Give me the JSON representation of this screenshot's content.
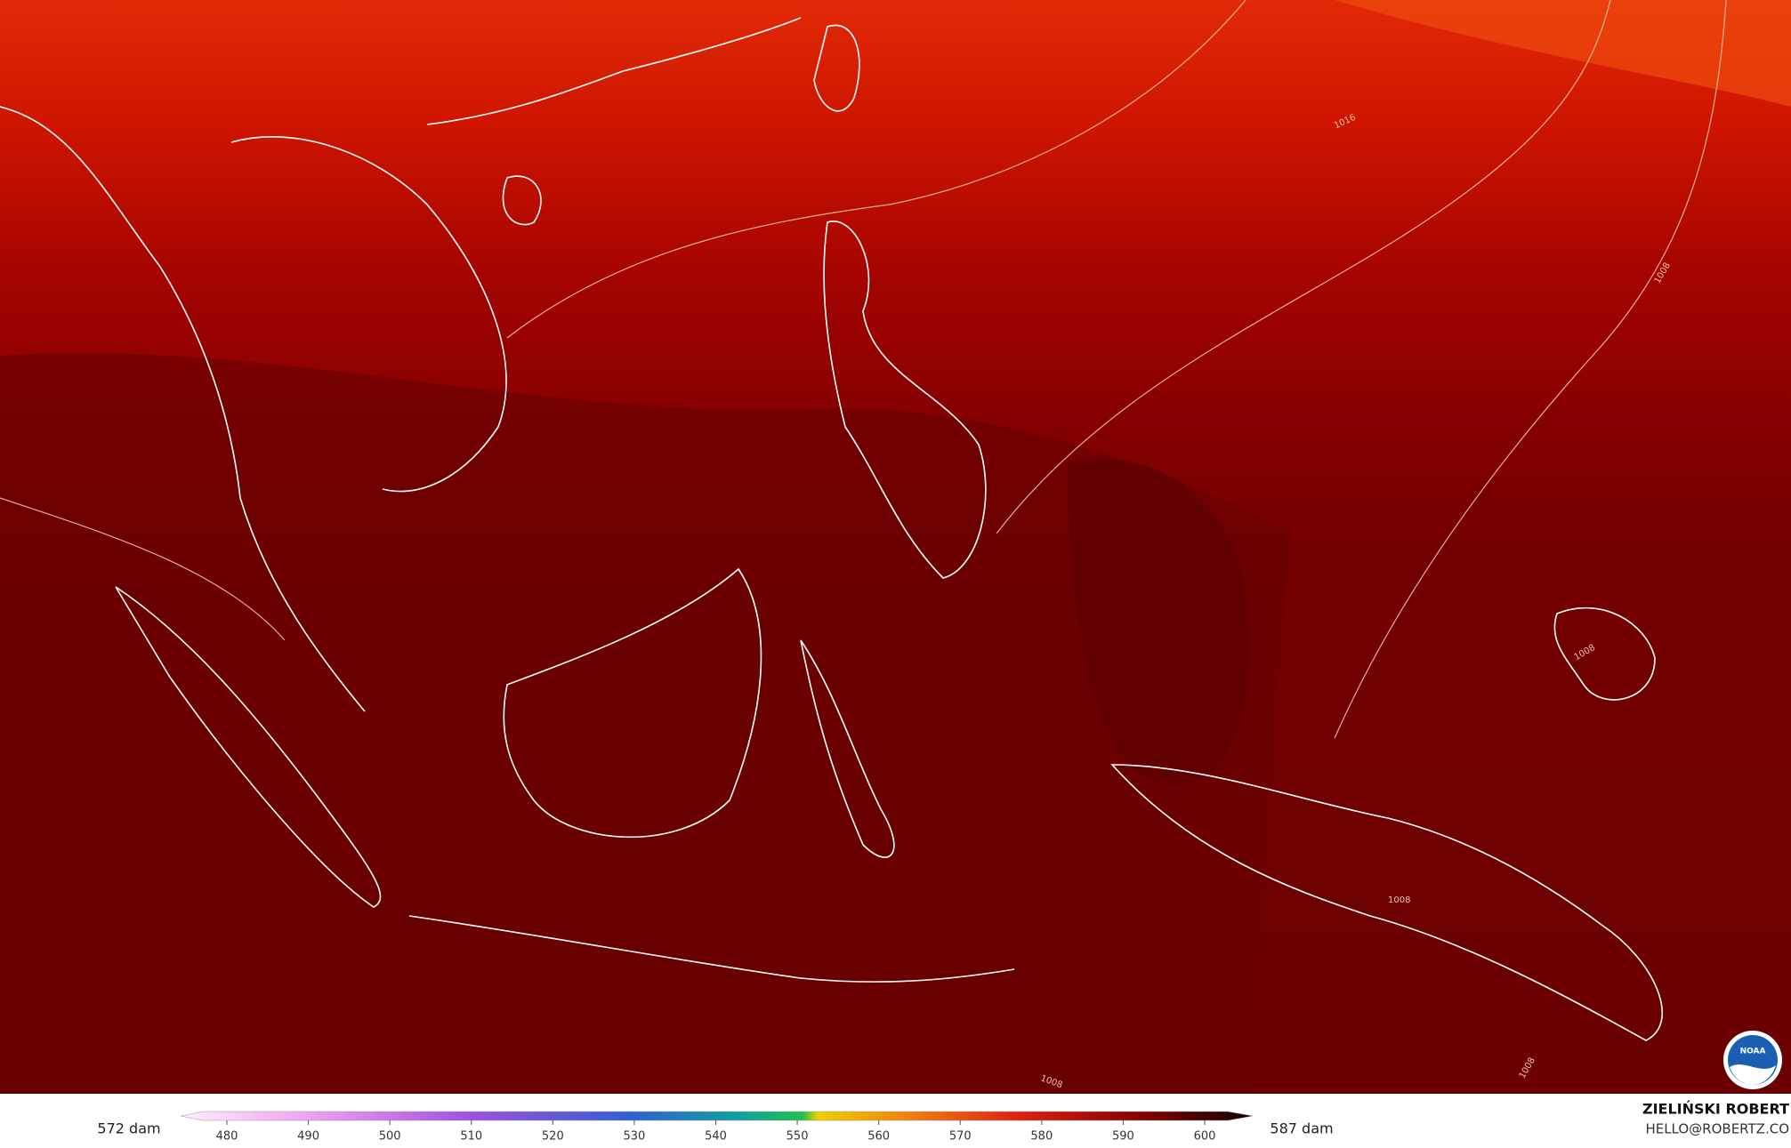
{
  "colorbar": {
    "min_label": "572 dam",
    "max_label": "587 dam",
    "ticks": [
      480,
      490,
      500,
      510,
      520,
      530,
      540,
      550,
      560,
      570,
      580,
      590,
      600
    ]
  },
  "isobar_labels": [
    "1016",
    "1008",
    "1008",
    "1008",
    "1008",
    "1008"
  ],
  "logo": "NOAA",
  "credit": {
    "name": "ZIELIŃSKI ROBERT",
    "email": "HELLO@ROBERTZ.CO"
  }
}
